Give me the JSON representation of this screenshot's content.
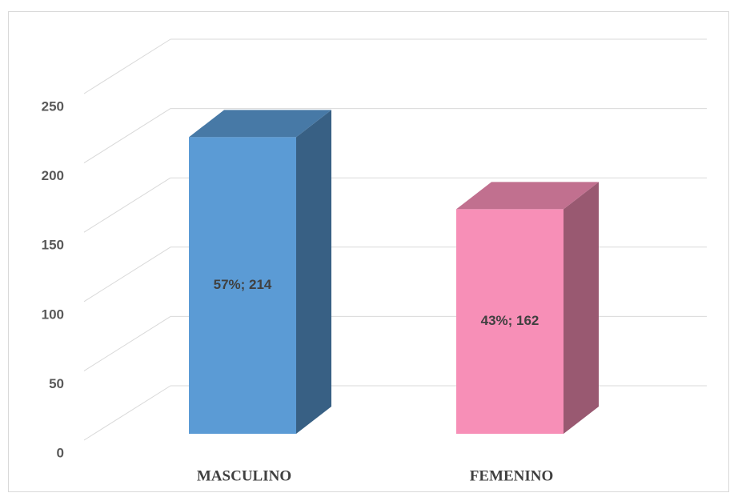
{
  "chart_data": {
    "type": "bar3d",
    "categories": [
      "MASCULINO",
      "FEMENINO"
    ],
    "values": [
      214,
      162
    ],
    "value_labels": [
      "57%; 214",
      "43%; 162"
    ],
    "colors": [
      "#5b9bd5",
      "#f78fb7"
    ],
    "ylim": [
      0,
      250
    ],
    "yticks": [
      0,
      50,
      100,
      150,
      200,
      250
    ],
    "grid": true
  }
}
